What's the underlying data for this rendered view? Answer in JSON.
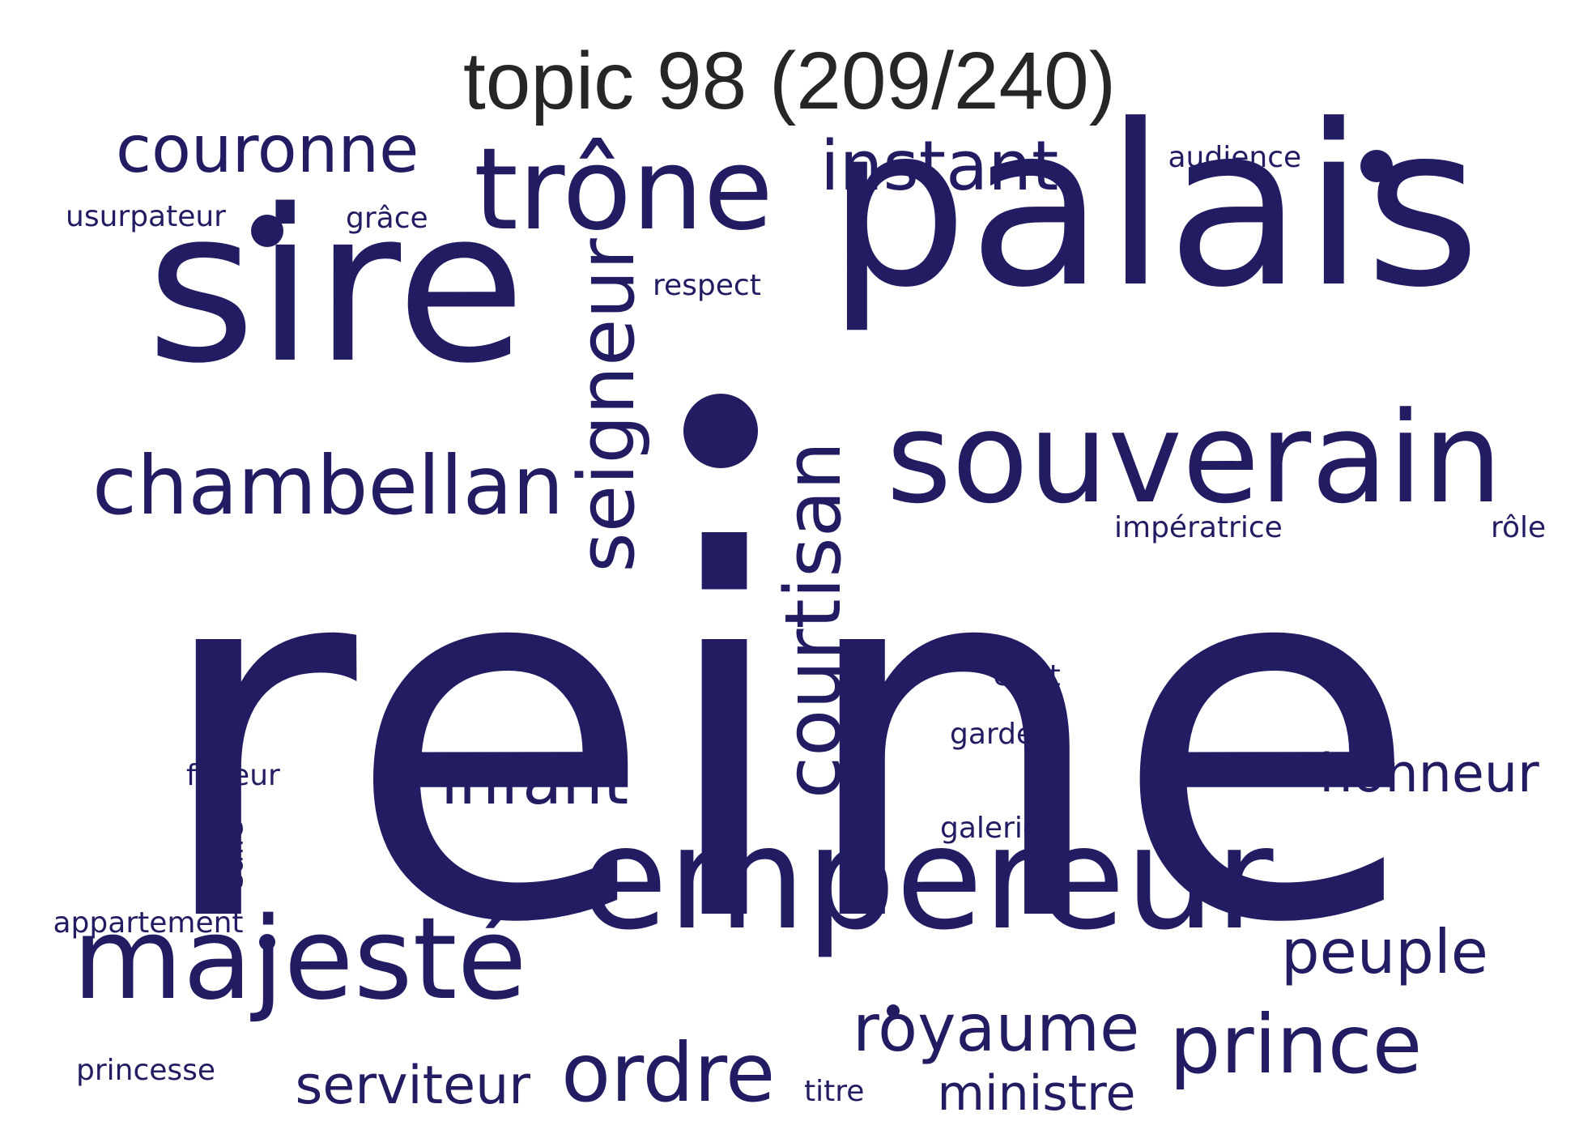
{
  "title": "topic 98 (209/240)",
  "word_color": "#221d62",
  "words": [
    {
      "text": "reine",
      "weight": 1.0,
      "orientation": "horizontal"
    },
    {
      "text": "palais",
      "weight": 0.62,
      "orientation": "horizontal"
    },
    {
      "text": "sire",
      "weight": 0.58,
      "orientation": "horizontal"
    },
    {
      "text": "empereur",
      "weight": 0.4,
      "orientation": "horizontal"
    },
    {
      "text": "souverain",
      "weight": 0.3,
      "orientation": "horizontal"
    },
    {
      "text": "trône",
      "weight": 0.29,
      "orientation": "horizontal"
    },
    {
      "text": "majesté",
      "weight": 0.29,
      "orientation": "horizontal"
    },
    {
      "text": "chambellan",
      "weight": 0.2,
      "orientation": "horizontal"
    },
    {
      "text": "ordre",
      "weight": 0.2,
      "orientation": "horizontal"
    },
    {
      "text": "prince",
      "weight": 0.2,
      "orientation": "horizontal"
    },
    {
      "text": "seigneur",
      "weight": 0.19,
      "orientation": "vertical"
    },
    {
      "text": "courtisan",
      "weight": 0.18,
      "orientation": "vertical"
    },
    {
      "text": "instant",
      "weight": 0.16,
      "orientation": "horizontal"
    },
    {
      "text": "couronne",
      "weight": 0.16,
      "orientation": "horizontal"
    },
    {
      "text": "royaume",
      "weight": 0.16,
      "orientation": "horizontal"
    },
    {
      "text": "infant",
      "weight": 0.16,
      "orientation": "horizontal"
    },
    {
      "text": "peuple",
      "weight": 0.15,
      "orientation": "horizontal"
    },
    {
      "text": "serviteur",
      "weight": 0.13,
      "orientation": "horizontal"
    },
    {
      "text": "honneur",
      "weight": 0.13,
      "orientation": "horizontal"
    },
    {
      "text": "ministre",
      "weight": 0.12,
      "orientation": "horizontal"
    },
    {
      "text": "audience",
      "weight": 0.07,
      "orientation": "horizontal"
    },
    {
      "text": "usurpateur",
      "weight": 0.07,
      "orientation": "horizontal"
    },
    {
      "text": "grâce",
      "weight": 0.07,
      "orientation": "horizontal"
    },
    {
      "text": "respect",
      "weight": 0.07,
      "orientation": "horizontal"
    },
    {
      "text": "impératrice",
      "weight": 0.07,
      "orientation": "horizontal"
    },
    {
      "text": "rôle",
      "weight": 0.07,
      "orientation": "horizontal"
    },
    {
      "text": "effet",
      "weight": 0.07,
      "orientation": "horizontal"
    },
    {
      "text": "garde",
      "weight": 0.07,
      "orientation": "horizontal"
    },
    {
      "text": "galerie",
      "weight": 0.07,
      "orientation": "horizontal"
    },
    {
      "text": "sceau",
      "weight": 0.07,
      "orientation": "vertical"
    },
    {
      "text": "faveur",
      "weight": 0.07,
      "orientation": "horizontal"
    },
    {
      "text": "salle",
      "weight": 0.07,
      "orientation": "vertical"
    },
    {
      "text": "appartement",
      "weight": 0.07,
      "orientation": "horizontal"
    },
    {
      "text": "princesse",
      "weight": 0.07,
      "orientation": "horizontal"
    },
    {
      "text": "titre",
      "weight": 0.07,
      "orientation": "horizontal"
    }
  ]
}
